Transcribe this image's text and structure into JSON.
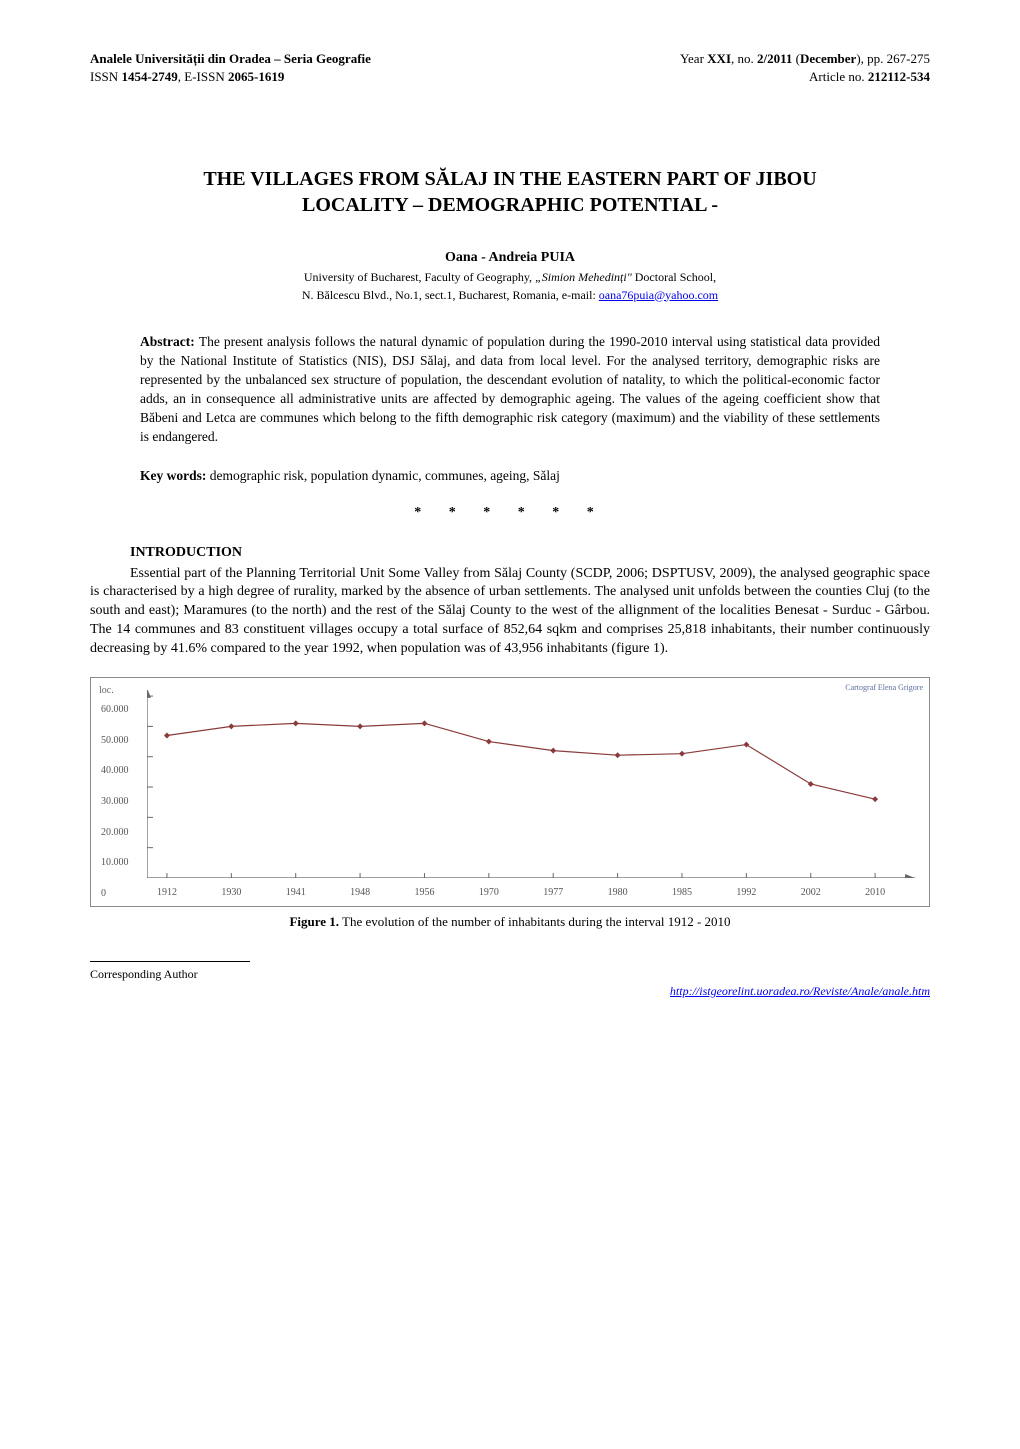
{
  "header": {
    "journal_line1_prefix": "Analele Universității din Oradea – Seria Geografie",
    "issn_line_prefix": "ISSN ",
    "issn": "1454-2749",
    "eissn_prefix": ", E-ISSN ",
    "eissn": "2065-1619",
    "year_prefix": "Year ",
    "year": "XXI",
    "no_prefix": ", no. ",
    "issue": "2/2011",
    "month_prefix": " (",
    "month": "December",
    "month_suffix": "), pp. 267-275",
    "article_no_prefix": "Article no. ",
    "article_no": "212112-534"
  },
  "title": {
    "line1": "THE VILLAGES FROM SĂLAJ IN THE EASTERN PART OF JIBOU",
    "line2": "LOCALITY – DEMOGRAPHIC POTENTIAL -"
  },
  "author": {
    "name": "Oana - Andreia PUIA",
    "affil_line1_prefix": "University of Bucharest, Faculty of Geography, ",
    "affil_italic": "„Simion Mehedinți\"",
    "affil_line1_suffix": " Doctoral School,",
    "affil_line2_prefix": "N. Bălcescu Blvd., No.1, sect.1, Bucharest, Romania, e-mail: ",
    "email": "oana76puia@yahoo.com"
  },
  "abstract": {
    "label": "Abstract: ",
    "text": "The present analysis follows the natural dynamic of population during the 1990-2010 interval using statistical data provided by the National Institute of Statistics (NIS), DSJ Sălaj, and data from local level. For the analysed territory, demographic risks are represented by the unbalanced sex structure of population, the descendant evolution of natality, to which the political-economic factor adds, an in consequence all administrative units are affected by demographic ageing. The values of the ageing coefficient show that Băbeni and Letca are communes which belong to the fifth demographic risk category (maximum) and the viability of these settlements is endangered."
  },
  "keywords": {
    "label": "Key words: ",
    "text": "demographic risk, population dynamic, communes, ageing, Sălaj"
  },
  "stars": "* * * * * *",
  "section": {
    "intro_heading": "INTRODUCTION",
    "intro_para": "Essential part of the Planning Territorial Unit Some Valley from Sălaj County (SCDP, 2006; DSPTUSV, 2009), the analysed geographic space is characterised by a high degree of rurality, marked by the absence of urban settlements. The analysed unit unfolds between the counties Cluj (to the south and east); Maramures (to the north) and the rest of the Sălaj County to the west of the allignment of the localities Benesat - Surduc - Gârbou. The 14 communes and 83 constituent villages occupy a total surface of 852,64 sqkm and comprises 25,818 inhabitants, their number continuously decreasing by 41.6% compared to the year 1992, when population was of 43,956 inhabitants (figure 1)."
  },
  "figure1": {
    "type": "line",
    "ylabel": "loc.",
    "attribution": "Cartograf Elena Grigore",
    "x_labels": [
      "1912",
      "1930",
      "1941",
      "1948",
      "1956",
      "1970",
      "1977",
      "1980",
      "1985",
      "1992",
      "2002",
      "2010"
    ],
    "y_values": [
      47000,
      50000,
      51000,
      50000,
      51000,
      45000,
      42000,
      40500,
      41000,
      44000,
      31000,
      26000
    ],
    "y_ticks": [
      0,
      10000,
      20000,
      30000,
      40000,
      50000,
      60000
    ],
    "y_tick_labels": [
      "0",
      "10.000",
      "20.000",
      "30.000",
      "40.000",
      "50.000",
      "60.000"
    ],
    "ylim": [
      0,
      62000
    ],
    "line_color": "#8a3a3a",
    "marker_color": "#8a3a3a",
    "axis_color": "#666666",
    "tick_color": "#555555",
    "background_color": "#ffffff",
    "line_width": 1.2,
    "marker_size": 3,
    "caption_bold": "Figure 1.",
    "caption_rest": "  The evolution of the number of inhabitants during the interval 1912 - 2010"
  },
  "footer": {
    "footnote": "Corresponding Author",
    "link_text": "http://istgeorelint.uoradea.ro/Reviste/Anale/anale.htm"
  }
}
